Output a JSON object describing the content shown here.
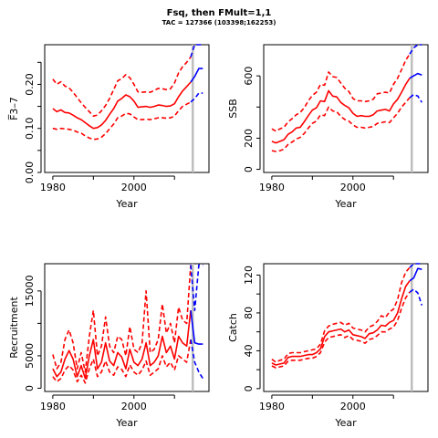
{
  "title": "Fsq, then FMult=1,1",
  "subtitle": "TAC = 127366 (103398;162253)",
  "colors": {
    "history": "#ff0000",
    "projection": "#0000ff",
    "marker": "#bebebe",
    "axis": "#000000"
  },
  "chart_data": [
    {
      "id": "fbar",
      "type": "line",
      "xlabel": "Year",
      "ylabel": "F̅3–7",
      "xlim": [
        1978,
        2018.5
      ],
      "ylim": [
        0,
        0.29
      ],
      "xticks": [
        1980,
        2000
      ],
      "yticks": [
        0.0,
        0.1,
        0.2
      ],
      "ytick_labels": [
        "0.00",
        "0.10",
        "0.20"
      ],
      "minor_yticks": [
        0.05,
        0.15,
        0.25
      ],
      "marker_year": 2014.5,
      "history": {
        "x": [
          1980,
          1981,
          1982,
          1983,
          1984,
          1985,
          1986,
          1987,
          1988,
          1989,
          1990,
          1991,
          1992,
          1993,
          1994,
          1995,
          1996,
          1997,
          1998,
          1999,
          2000,
          2001,
          2002,
          2003,
          2004,
          2005,
          2006,
          2007,
          2008,
          2009,
          2010,
          2011,
          2012,
          2013,
          2014
        ],
        "median": [
          0.145,
          0.138,
          0.142,
          0.136,
          0.135,
          0.13,
          0.124,
          0.12,
          0.113,
          0.106,
          0.1,
          0.102,
          0.108,
          0.118,
          0.132,
          0.145,
          0.162,
          0.168,
          0.176,
          0.172,
          0.162,
          0.148,
          0.149,
          0.15,
          0.148,
          0.15,
          0.153,
          0.152,
          0.15,
          0.151,
          0.156,
          0.172,
          0.185,
          0.195,
          0.205
        ],
        "upper": [
          0.212,
          0.2,
          0.206,
          0.196,
          0.192,
          0.182,
          0.17,
          0.158,
          0.148,
          0.138,
          0.128,
          0.13,
          0.14,
          0.152,
          0.168,
          0.188,
          0.208,
          0.213,
          0.222,
          0.215,
          0.2,
          0.183,
          0.182,
          0.183,
          0.182,
          0.186,
          0.191,
          0.19,
          0.188,
          0.19,
          0.203,
          0.226,
          0.24,
          0.25,
          0.262
        ],
        "lower": [
          0.1,
          0.098,
          0.1,
          0.099,
          0.098,
          0.096,
          0.092,
          0.089,
          0.083,
          0.078,
          0.075,
          0.076,
          0.08,
          0.088,
          0.099,
          0.11,
          0.124,
          0.128,
          0.134,
          0.133,
          0.126,
          0.12,
          0.12,
          0.121,
          0.12,
          0.122,
          0.124,
          0.124,
          0.123,
          0.124,
          0.128,
          0.14,
          0.15,
          0.155,
          0.16
        ]
      },
      "projection": {
        "x": [
          2014,
          2015,
          2016,
          2017
        ],
        "median": [
          0.205,
          0.218,
          0.236,
          0.236
        ],
        "upper": [
          0.262,
          0.29,
          0.3,
          0.3
        ],
        "lower": [
          0.16,
          0.168,
          0.18,
          0.18
        ]
      }
    },
    {
      "id": "ssb",
      "type": "line",
      "xlabel": "Year",
      "ylabel": "SSB",
      "xlim": [
        1978,
        2018.5
      ],
      "ylim": [
        -20,
        800
      ],
      "xticks": [
        1980,
        2000
      ],
      "yticks": [
        0,
        200,
        600
      ],
      "ytick_labels": [
        "0",
        "200",
        "600"
      ],
      "minor_yticks": [
        400
      ],
      "marker_year": 2014.5,
      "history": {
        "x": [
          1980,
          1981,
          1982,
          1983,
          1984,
          1985,
          1986,
          1987,
          1988,
          1989,
          1990,
          1991,
          1992,
          1993,
          1994,
          1995,
          1996,
          1997,
          1998,
          1999,
          2000,
          2001,
          2002,
          2003,
          2004,
          2005,
          2006,
          2007,
          2008,
          2009,
          2010,
          2011,
          2012,
          2013,
          2014
        ],
        "median": [
          180,
          170,
          180,
          190,
          225,
          240,
          265,
          270,
          305,
          345,
          380,
          395,
          440,
          435,
          505,
          470,
          465,
          430,
          410,
          395,
          360,
          340,
          345,
          340,
          340,
          350,
          375,
          380,
          385,
          375,
          420,
          450,
          495,
          545,
          585
        ],
        "upper": [
          260,
          245,
          260,
          270,
          305,
          325,
          350,
          365,
          395,
          440,
          475,
          495,
          545,
          540,
          625,
          595,
          590,
          555,
          520,
          500,
          455,
          440,
          440,
          435,
          440,
          450,
          485,
          490,
          495,
          490,
          545,
          585,
          640,
          700,
          740
        ],
        "lower": [
          120,
          115,
          120,
          130,
          160,
          175,
          195,
          205,
          230,
          265,
          295,
          310,
          350,
          345,
          400,
          375,
          370,
          340,
          320,
          310,
          285,
          270,
          270,
          265,
          270,
          275,
          295,
          300,
          305,
          300,
          330,
          360,
          400,
          430,
          460
        ]
      },
      "projection": {
        "x": [
          2014,
          2015,
          2016,
          2017
        ],
        "median": [
          585,
          600,
          615,
          605
        ],
        "upper": [
          740,
          780,
          800,
          800
        ],
        "lower": [
          460,
          480,
          470,
          430
        ]
      }
    },
    {
      "id": "recruitment",
      "type": "line",
      "xlabel": "Year",
      "ylabel": "Recruitment",
      "xlim": [
        1978,
        2018.5
      ],
      "ylim": [
        -500,
        19200
      ],
      "xticks": [
        1980,
        2000
      ],
      "yticks": [
        0,
        5000,
        15000
      ],
      "ytick_labels": [
        "0",
        "5000",
        "15000"
      ],
      "minor_yticks": [
        10000
      ],
      "marker_year": 2014.5,
      "history": {
        "x": [
          1980,
          1981,
          1982,
          1983,
          1984,
          1985,
          1986,
          1987,
          1988,
          1989,
          1990,
          1991,
          1992,
          1993,
          1994,
          1995,
          1996,
          1997,
          1998,
          1999,
          2000,
          2001,
          2002,
          2003,
          2004,
          2005,
          2006,
          2007,
          2008,
          2009,
          2010,
          2011,
          2012,
          2013,
          2014
        ],
        "median": [
          3000,
          1800,
          2500,
          4500,
          5800,
          4500,
          1800,
          3500,
          1500,
          5000,
          7500,
          3000,
          4000,
          7000,
          4200,
          3500,
          5500,
          4800,
          3000,
          6000,
          4000,
          3500,
          4500,
          7000,
          3500,
          4000,
          5000,
          8000,
          5500,
          6500,
          4500,
          8000,
          7000,
          6500,
          12000
        ],
        "upper": [
          5200,
          3000,
          4000,
          7500,
          9000,
          7000,
          3000,
          5500,
          2500,
          8000,
          12000,
          5000,
          6500,
          11000,
          6500,
          5500,
          8000,
          7500,
          5000,
          9500,
          6000,
          5500,
          7000,
          15000,
          5500,
          6000,
          7500,
          13000,
          8500,
          10000,
          7000,
          12500,
          10500,
          10000,
          19000
        ],
        "lower": [
          1800,
          1000,
          1500,
          2800,
          3500,
          2800,
          1000,
          2000,
          800,
          3000,
          4500,
          1800,
          2500,
          4200,
          2500,
          2000,
          3300,
          2900,
          1800,
          3600,
          2500,
          2000,
          2800,
          4200,
          2000,
          2500,
          3000,
          5000,
          3300,
          4000,
          2800,
          5000,
          4500,
          4000,
          7500
        ]
      },
      "projection": {
        "x": [
          2014,
          2015,
          2016,
          2017
        ],
        "median": [
          12000,
          7000,
          6800,
          6800
        ],
        "upper": [
          19000,
          12000,
          19000,
          19000
        ],
        "lower": [
          7500,
          4000,
          2500,
          1500
        ]
      }
    },
    {
      "id": "catch",
      "type": "line",
      "xlabel": "Year",
      "ylabel": "Catch",
      "xlim": [
        1978,
        2018.5
      ],
      "ylim": [
        -3,
        132
      ],
      "xticks": [
        1980,
        2000
      ],
      "yticks": [
        0,
        40,
        80,
        120
      ],
      "ytick_labels": [
        "0",
        "40",
        "80",
        "120"
      ],
      "minor_yticks": [
        20,
        60,
        100
      ],
      "marker_year": 2014.5,
      "history": {
        "x": [
          1980,
          1981,
          1982,
          1983,
          1984,
          1985,
          1986,
          1987,
          1988,
          1989,
          1990,
          1991,
          1992,
          1993,
          1994,
          1995,
          1996,
          1997,
          1998,
          1999,
          2000,
          2001,
          2002,
          2003,
          2004,
          2005,
          2006,
          2007,
          2008,
          2009,
          2010,
          2011,
          2012,
          2013,
          2014
        ],
        "median": [
          27,
          25,
          26,
          27,
          33,
          34,
          34,
          34,
          35,
          36,
          36,
          38,
          42,
          55,
          60,
          61,
          62,
          63,
          60,
          62,
          57,
          56,
          55,
          53,
          58,
          59,
          62,
          67,
          66,
          70,
          72,
          80,
          95,
          108,
          114
        ],
        "upper": [
          31,
          28,
          30,
          31,
          37,
          38,
          38,
          38,
          39,
          40,
          41,
          42,
          47,
          61,
          66,
          68,
          69,
          70,
          67,
          69,
          64,
          63,
          62,
          60,
          65,
          67,
          71,
          77,
          75,
          81,
          84,
          94,
          112,
          123,
          128
        ],
        "lower": [
          24,
          22,
          23,
          24,
          29,
          30,
          30,
          30,
          31,
          32,
          32,
          34,
          38,
          49,
          54,
          55,
          56,
          57,
          54,
          56,
          52,
          51,
          50,
          48,
          52,
          53,
          56,
          60,
          60,
          63,
          65,
          72,
          85,
          96,
          102
        ]
      },
      "projection": {
        "x": [
          2014,
          2015,
          2016,
          2017
        ],
        "median": [
          114,
          117,
          127,
          126
        ],
        "upper": [
          128,
          132,
          132,
          132
        ],
        "lower": [
          102,
          105,
          101,
          88
        ]
      }
    }
  ]
}
